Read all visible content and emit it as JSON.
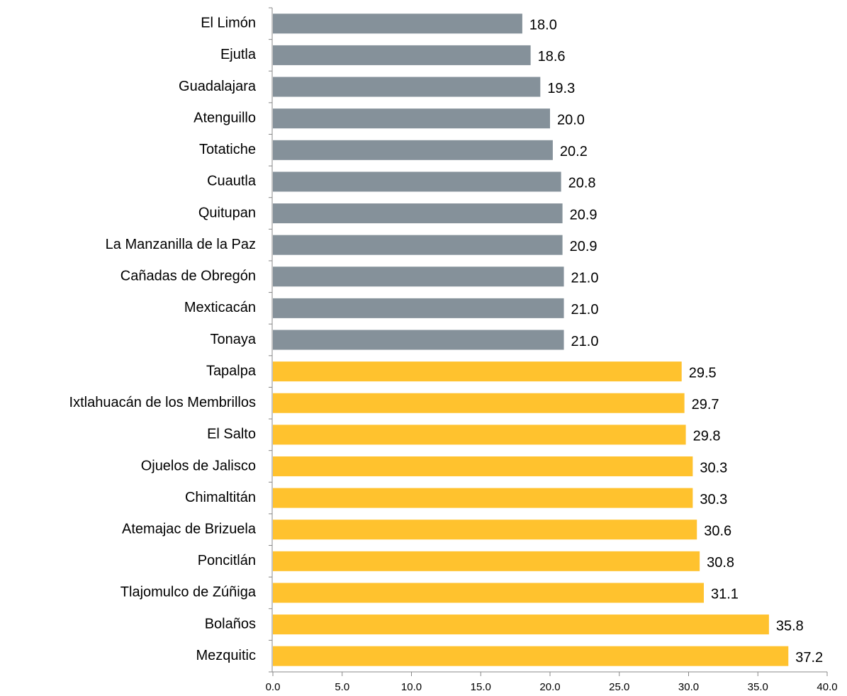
{
  "chart_data": {
    "type": "barh",
    "categories": [
      "El Limón",
      "Ejutla",
      "Guadalajara",
      "Atenguillo",
      "Totatiche",
      "Cuautla",
      "Quitupan",
      "La Manzanilla de la Paz",
      "Cañadas de Obregón",
      "Mexticacán",
      "Tonaya",
      "Tapalpa",
      "Ixtlahuacán de los Membrillos",
      "El Salto",
      "Ojuelos de Jalisco",
      "Chimaltitán",
      "Atemajac de Brizuela",
      "Poncitlán",
      "Tlajomulco de Zúñiga",
      "Bolaños",
      "Mezquitic"
    ],
    "values": [
      18.0,
      18.6,
      19.3,
      20.0,
      20.2,
      20.8,
      20.9,
      20.9,
      21.0,
      21.0,
      21.0,
      29.5,
      29.7,
      29.8,
      30.3,
      30.3,
      30.6,
      30.8,
      31.1,
      35.8,
      37.2
    ],
    "value_labels": [
      "18.0",
      "18.6",
      "19.3",
      "20.0",
      "20.2",
      "20.8",
      "20.9",
      "20.9",
      "21.0",
      "21.0",
      "21.0",
      "29.5",
      "29.7",
      "29.8",
      "30.3",
      "30.3",
      "30.6",
      "30.8",
      "31.1",
      "35.8",
      "37.2"
    ],
    "colors": [
      "#85919a",
      "#85919a",
      "#85919a",
      "#85919a",
      "#85919a",
      "#85919a",
      "#85919a",
      "#85919a",
      "#85919a",
      "#85919a",
      "#85919a",
      "#ffc22e",
      "#ffc22e",
      "#ffc22e",
      "#ffc22e",
      "#ffc22e",
      "#ffc22e",
      "#ffc22e",
      "#ffc22e",
      "#ffc22e",
      "#ffc22e"
    ],
    "xlim": [
      0,
      40
    ],
    "xticks": [
      {
        "value": 0,
        "label": "0.0"
      },
      {
        "value": 5,
        "label": "5.0"
      },
      {
        "value": 10,
        "label": "10.0"
      },
      {
        "value": 15,
        "label": "15.0"
      },
      {
        "value": 20,
        "label": "20.0"
      },
      {
        "value": 25,
        "label": "25.0"
      },
      {
        "value": 30,
        "label": "30.0"
      },
      {
        "value": 35,
        "label": "35.0"
      },
      {
        "value": 40,
        "label": "40.0"
      }
    ],
    "grid": false
  }
}
